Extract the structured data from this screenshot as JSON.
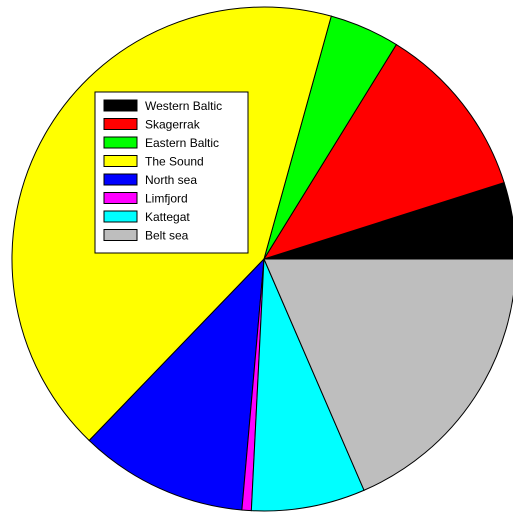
{
  "chart_data": {
    "type": "pie",
    "start_angle_deg": 0,
    "direction": "counterclockwise",
    "legend_position": "upper-left-inside",
    "series": [
      {
        "name": "Western Baltic",
        "value": 4.9,
        "color": "#000000"
      },
      {
        "name": "Skagerrak",
        "value": 11.3,
        "color": "#ff0000"
      },
      {
        "name": "Eastern Baltic",
        "value": 4.5,
        "color": "#00ff00"
      },
      {
        "name": "The Sound",
        "value": 42.1,
        "color": "#ffff00"
      },
      {
        "name": "North sea",
        "value": 10.8,
        "color": "#0000ff"
      },
      {
        "name": "Limfjord",
        "value": 0.6,
        "color": "#ff00ff"
      },
      {
        "name": "Kattegat",
        "value": 7.3,
        "color": "#00ffff"
      },
      {
        "name": "Belt sea",
        "value": 18.5,
        "color": "#bebebe"
      }
    ]
  }
}
